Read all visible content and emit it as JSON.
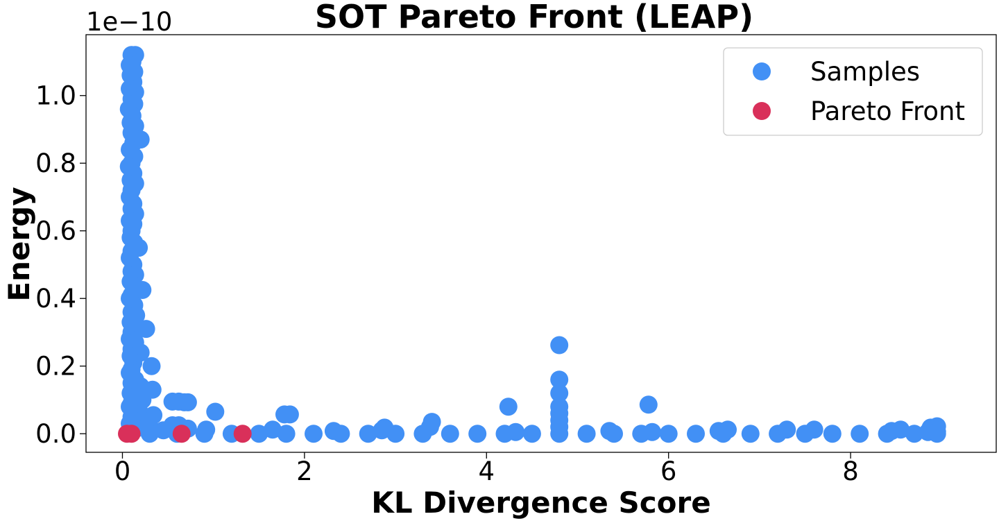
{
  "chart_data": {
    "type": "scatter",
    "title": "SOT Pareto Front (LEAP)",
    "xlabel": "KL Divergence Score",
    "ylabel": "Energy",
    "y_offset_label": "1e−10",
    "xlim": [
      -0.4,
      9.6
    ],
    "ylim": [
      -0.055,
      1.18
    ],
    "y_scale_note": "values in units of 1e-10",
    "x_ticks": [
      0,
      2,
      4,
      6,
      8
    ],
    "x_tick_labels": [
      "0",
      "2",
      "4",
      "6",
      "8"
    ],
    "y_ticks": [
      0.0,
      0.2,
      0.4,
      0.6,
      0.8,
      1.0
    ],
    "y_tick_labels": [
      "0.0",
      "0.2",
      "0.4",
      "0.6",
      "0.8",
      "1.0"
    ],
    "grid": false,
    "legend_position": "top-right",
    "colors": {
      "samples": "#4290f5",
      "pareto": "#d9305a"
    },
    "series": [
      {
        "name": "Samples",
        "points": [
          [
            0.1,
            1.12
          ],
          [
            0.14,
            1.12
          ],
          [
            0.11,
            1.1
          ],
          [
            0.08,
            1.09
          ],
          [
            0.13,
            1.07
          ],
          [
            0.09,
            1.06
          ],
          [
            0.12,
            1.04
          ],
          [
            0.08,
            1.02
          ],
          [
            0.14,
            1.01
          ],
          [
            0.1,
            0.99
          ],
          [
            0.13,
            0.975
          ],
          [
            0.07,
            0.96
          ],
          [
            0.11,
            0.94
          ],
          [
            0.09,
            0.92
          ],
          [
            0.14,
            0.91
          ],
          [
            0.1,
            0.89
          ],
          [
            0.2,
            0.87
          ],
          [
            0.12,
            0.86
          ],
          [
            0.08,
            0.84
          ],
          [
            0.13,
            0.82
          ],
          [
            0.1,
            0.8
          ],
          [
            0.07,
            0.79
          ],
          [
            0.12,
            0.77
          ],
          [
            0.09,
            0.75
          ],
          [
            0.14,
            0.74
          ],
          [
            0.1,
            0.72
          ],
          [
            0.08,
            0.7
          ],
          [
            0.12,
            0.68
          ],
          [
            0.1,
            0.665
          ],
          [
            0.14,
            0.65
          ],
          [
            0.08,
            0.63
          ],
          [
            0.12,
            0.62
          ],
          [
            0.1,
            0.6
          ],
          [
            0.09,
            0.58
          ],
          [
            0.13,
            0.565
          ],
          [
            0.18,
            0.55
          ],
          [
            0.1,
            0.54
          ],
          [
            0.08,
            0.52
          ],
          [
            0.12,
            0.5
          ],
          [
            0.1,
            0.48
          ],
          [
            0.14,
            0.47
          ],
          [
            0.09,
            0.45
          ],
          [
            0.12,
            0.44
          ],
          [
            0.22,
            0.425
          ],
          [
            0.1,
            0.41
          ],
          [
            0.08,
            0.4
          ],
          [
            0.13,
            0.38
          ],
          [
            0.1,
            0.36
          ],
          [
            0.15,
            0.35
          ],
          [
            0.09,
            0.33
          ],
          [
            0.12,
            0.32
          ],
          [
            0.26,
            0.31
          ],
          [
            0.1,
            0.3
          ],
          [
            0.08,
            0.28
          ],
          [
            0.14,
            0.27
          ],
          [
            0.1,
            0.25
          ],
          [
            0.2,
            0.24
          ],
          [
            0.09,
            0.23
          ],
          [
            0.12,
            0.21
          ],
          [
            0.32,
            0.2
          ],
          [
            0.1,
            0.19
          ],
          [
            0.08,
            0.18
          ],
          [
            0.14,
            0.16
          ],
          [
            0.1,
            0.15
          ],
          [
            0.2,
            0.14
          ],
          [
            0.33,
            0.13
          ],
          [
            0.09,
            0.12
          ],
          [
            0.15,
            0.11
          ],
          [
            0.22,
            0.1
          ],
          [
            0.1,
            0.09
          ],
          [
            0.55,
            0.095
          ],
          [
            0.62,
            0.095
          ],
          [
            0.68,
            0.093
          ],
          [
            0.72,
            0.093
          ],
          [
            0.08,
            0.08
          ],
          [
            0.18,
            0.07
          ],
          [
            0.12,
            0.06
          ],
          [
            1.02,
            0.065
          ],
          [
            0.34,
            0.055
          ],
          [
            0.1,
            0.05
          ],
          [
            0.22,
            0.04
          ],
          [
            1.78,
            0.057
          ],
          [
            1.84,
            0.057
          ],
          [
            0.08,
            0.03
          ],
          [
            0.55,
            0.025
          ],
          [
            0.62,
            0.025
          ],
          [
            0.3,
            0.02
          ],
          [
            0.15,
            0.015
          ],
          [
            0.72,
            0.015
          ],
          [
            0.92,
            0.012
          ],
          [
            0.45,
            0.01
          ],
          [
            1.65,
            0.012
          ],
          [
            2.32,
            0.008
          ],
          [
            2.88,
            0.018
          ],
          [
            2.85,
            0.01
          ],
          [
            3.4,
            0.035
          ],
          [
            3.38,
            0.02
          ],
          [
            4.24,
            0.08
          ],
          [
            4.32,
            0.005
          ],
          [
            4.8,
            0.262
          ],
          [
            4.8,
            0.16
          ],
          [
            4.8,
            0.12
          ],
          [
            4.8,
            0.08
          ],
          [
            4.8,
            0.06
          ],
          [
            4.8,
            0.04
          ],
          [
            4.8,
            0.02
          ],
          [
            5.78,
            0.086
          ],
          [
            5.35,
            0.008
          ],
          [
            5.82,
            0.005
          ],
          [
            6.55,
            0.008
          ],
          [
            6.65,
            0.012
          ],
          [
            7.3,
            0.012
          ],
          [
            7.6,
            0.012
          ],
          [
            8.45,
            0.008
          ],
          [
            8.55,
            0.012
          ],
          [
            8.88,
            0.018
          ],
          [
            8.95,
            0.022
          ],
          [
            8.92,
            0.012
          ],
          [
            8.95,
            0.006
          ],
          [
            8.85,
            0.005
          ],
          [
            0.3,
            0.0
          ],
          [
            0.6,
            0.0
          ],
          [
            0.9,
            0.0
          ],
          [
            1.2,
            0.0
          ],
          [
            1.5,
            0.0
          ],
          [
            1.8,
            0.0
          ],
          [
            2.1,
            0.0
          ],
          [
            2.4,
            0.0
          ],
          [
            2.7,
            0.0
          ],
          [
            3.0,
            0.0
          ],
          [
            3.3,
            0.0
          ],
          [
            3.6,
            0.0
          ],
          [
            3.9,
            0.0
          ],
          [
            4.2,
            0.0
          ],
          [
            4.5,
            0.0
          ],
          [
            4.8,
            0.0
          ],
          [
            5.1,
            0.0
          ],
          [
            5.4,
            0.0
          ],
          [
            5.7,
            0.0
          ],
          [
            6.0,
            0.0
          ],
          [
            6.3,
            0.0
          ],
          [
            6.6,
            0.0
          ],
          [
            6.9,
            0.0
          ],
          [
            7.2,
            0.0
          ],
          [
            7.5,
            0.0
          ],
          [
            7.8,
            0.0
          ],
          [
            8.1,
            0.0
          ],
          [
            8.4,
            0.0
          ],
          [
            8.7,
            0.0
          ],
          [
            8.95,
            0.0
          ]
        ]
      },
      {
        "name": "Pareto Front",
        "points": [
          [
            0.05,
            0.0
          ],
          [
            0.1,
            0.0
          ],
          [
            0.65,
            0.0
          ],
          [
            1.32,
            0.0
          ]
        ]
      }
    ]
  }
}
